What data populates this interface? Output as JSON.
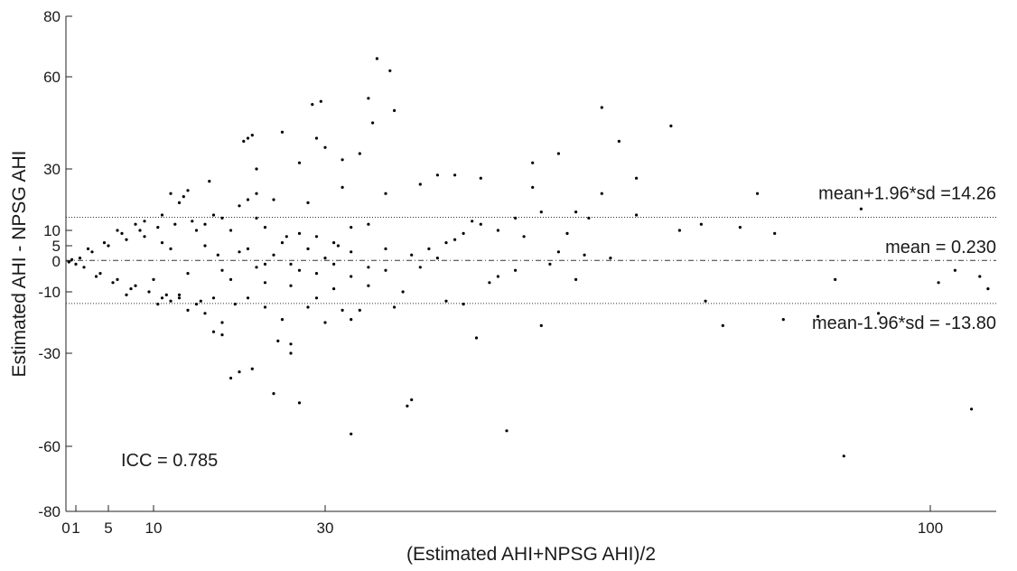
{
  "chart_data": {
    "type": "scatter",
    "title": "",
    "xlabel": "(Estimated AHI+NPSG AHI)/2",
    "ylabel": "Estimated AHI - NPSG AHI",
    "xlim": [
      0,
      108
    ],
    "ylim": [
      -80,
      80
    ],
    "x_ticks": [
      {
        "value": 0,
        "label": "0"
      },
      {
        "value": 1,
        "label": "1"
      },
      {
        "value": 5,
        "label": "5"
      },
      {
        "value": 10,
        "label": "10"
      },
      {
        "value": 30,
        "label": "30"
      },
      {
        "value": 100,
        "label": "100"
      }
    ],
    "y_ticks": [
      {
        "value": 80,
        "label": "80"
      },
      {
        "value": 60,
        "label": "60"
      },
      {
        "value": 30,
        "label": "30"
      },
      {
        "value": 10,
        "label": "10"
      },
      {
        "value": 5,
        "label": "5"
      },
      {
        "value": 0,
        "label": "0"
      },
      {
        "value": -10,
        "label": "-10"
      },
      {
        "value": -30,
        "label": "-30"
      },
      {
        "value": -60,
        "label": "-60"
      },
      {
        "value": -80,
        "label": "-80"
      }
    ],
    "reference_lines": [
      {
        "value": 14.26,
        "label": "mean+1.96*sd =14.26",
        "style": "dotted"
      },
      {
        "value": 0.23,
        "label": "mean = 0.230",
        "style": "dashdot"
      },
      {
        "value": -13.8,
        "label": "mean-1.96*sd = -13.80",
        "style": "dotted"
      }
    ],
    "annotation": "ICC = 0.785",
    "grid": false,
    "point_color": "#000000",
    "points": [
      [
        36,
        66
      ],
      [
        37.5,
        62
      ],
      [
        35,
        53
      ],
      [
        29.5,
        52
      ],
      [
        28.5,
        51
      ],
      [
        35.5,
        45
      ],
      [
        38,
        49
      ],
      [
        62,
        50
      ],
      [
        70,
        44
      ],
      [
        29,
        40
      ],
      [
        21.5,
        41
      ],
      [
        25,
        42
      ],
      [
        21,
        40
      ],
      [
        20.5,
        39
      ],
      [
        30,
        37
      ],
      [
        45,
        28
      ],
      [
        54,
        32
      ],
      [
        57,
        35
      ],
      [
        64,
        39
      ],
      [
        34,
        35
      ],
      [
        22,
        30
      ],
      [
        32,
        33
      ],
      [
        27,
        32
      ],
      [
        41,
        25
      ],
      [
        43,
        28
      ],
      [
        48,
        27
      ],
      [
        54,
        24
      ],
      [
        62,
        22
      ],
      [
        66,
        27
      ],
      [
        80,
        22
      ],
      [
        92,
        17
      ],
      [
        59,
        16
      ],
      [
        60.5,
        14
      ],
      [
        66,
        15
      ],
      [
        71,
        10
      ],
      [
        73.5,
        12
      ],
      [
        78,
        11
      ],
      [
        82,
        9
      ],
      [
        89,
        -6
      ],
      [
        101,
        -7
      ],
      [
        103,
        -3
      ],
      [
        107,
        -9
      ],
      [
        106,
        -5
      ],
      [
        47.5,
        -25
      ],
      [
        55,
        -21
      ],
      [
        74,
        -13
      ],
      [
        76,
        -21
      ],
      [
        83,
        -19
      ],
      [
        87,
        -18
      ],
      [
        94,
        -17
      ],
      [
        105,
        -48
      ],
      [
        90,
        -63
      ],
      [
        51,
        -55
      ],
      [
        33,
        -56
      ],
      [
        40,
        -45
      ],
      [
        39.5,
        -47
      ],
      [
        24,
        -43
      ],
      [
        27,
        -46
      ],
      [
        19,
        -38
      ],
      [
        21.5,
        -35
      ],
      [
        20,
        -36
      ],
      [
        24.5,
        -26
      ],
      [
        26,
        -27
      ],
      [
        26,
        -30
      ],
      [
        18,
        -24
      ],
      [
        17,
        -23
      ],
      [
        34,
        -16
      ],
      [
        32,
        -16
      ],
      [
        33,
        -19
      ],
      [
        38,
        -15
      ],
      [
        46,
        -14
      ],
      [
        30,
        -20
      ],
      [
        28,
        -15
      ],
      [
        44,
        -13
      ],
      [
        49,
        -7
      ],
      [
        52,
        -3
      ],
      [
        57,
        3
      ],
      [
        59,
        -6
      ],
      [
        31,
        6
      ],
      [
        33,
        3
      ],
      [
        29,
        8
      ],
      [
        31.5,
        5
      ],
      [
        25.5,
        8
      ],
      [
        27,
        -3
      ],
      [
        23,
        -7
      ],
      [
        23,
        11
      ],
      [
        22,
        14
      ],
      [
        24,
        20
      ],
      [
        28,
        19
      ],
      [
        35,
        12
      ],
      [
        32,
        24
      ],
      [
        37,
        22
      ],
      [
        15,
        10
      ],
      [
        16,
        12
      ],
      [
        17,
        15
      ],
      [
        18,
        14
      ],
      [
        19,
        10
      ],
      [
        20,
        18
      ],
      [
        21,
        20
      ],
      [
        22,
        22
      ],
      [
        13,
        19
      ],
      [
        14,
        23
      ],
      [
        12,
        22
      ],
      [
        13.5,
        21
      ],
      [
        16.5,
        26
      ],
      [
        19.5,
        -14
      ],
      [
        15,
        -14
      ],
      [
        14,
        -16
      ],
      [
        12,
        -13
      ],
      [
        11,
        -12
      ],
      [
        13,
        -11
      ],
      [
        17,
        -12
      ],
      [
        16,
        -17
      ],
      [
        18,
        -20
      ],
      [
        21,
        -12
      ],
      [
        23,
        -15
      ],
      [
        25,
        -19
      ],
      [
        26,
        -8
      ],
      [
        29,
        -12
      ],
      [
        31,
        -9
      ],
      [
        33,
        -5
      ],
      [
        35,
        -2
      ],
      [
        37,
        -3
      ],
      [
        40,
        2
      ],
      [
        42,
        4
      ],
      [
        44,
        6
      ],
      [
        46,
        9
      ],
      [
        48,
        12
      ],
      [
        50,
        10
      ],
      [
        53,
        8
      ],
      [
        56,
        -1
      ],
      [
        60,
        2
      ],
      [
        63,
        1
      ],
      [
        30,
        1
      ],
      [
        28,
        4
      ],
      [
        26,
        -1
      ],
      [
        24,
        2
      ],
      [
        22,
        -2
      ],
      [
        20,
        3
      ],
      [
        18,
        -3
      ],
      [
        16,
        5
      ],
      [
        14,
        -4
      ],
      [
        12,
        4
      ],
      [
        11,
        6
      ],
      [
        10,
        -6
      ],
      [
        9,
        8
      ],
      [
        8,
        -8
      ],
      [
        7,
        7
      ],
      [
        6,
        -6
      ],
      [
        5,
        5
      ],
      [
        4,
        -4
      ],
      [
        3,
        3
      ],
      [
        2,
        -2
      ],
      [
        1.5,
        1
      ],
      [
        1,
        -1
      ],
      [
        0.6,
        0.5
      ],
      [
        0.3,
        -0.3
      ],
      [
        6.5,
        9
      ],
      [
        7.5,
        -9
      ],
      [
        8.5,
        10
      ],
      [
        9.5,
        -10
      ],
      [
        10.5,
        11
      ],
      [
        11.5,
        -11
      ],
      [
        12.5,
        12
      ],
      [
        13,
        -12
      ],
      [
        14.5,
        13
      ],
      [
        15.5,
        -13
      ],
      [
        10.5,
        -14
      ],
      [
        11,
        15
      ],
      [
        9,
        13
      ],
      [
        8,
        12
      ],
      [
        7,
        -11
      ],
      [
        6,
        10
      ],
      [
        5.5,
        -7
      ],
      [
        4.5,
        6
      ],
      [
        3.5,
        -5
      ],
      [
        2.5,
        4
      ],
      [
        17.5,
        2
      ],
      [
        19,
        -6
      ],
      [
        21,
        4
      ],
      [
        23,
        -1
      ],
      [
        25,
        6
      ],
      [
        27,
        9
      ],
      [
        29,
        -4
      ],
      [
        31,
        -1
      ],
      [
        33,
        11
      ],
      [
        35,
        -8
      ],
      [
        37,
        4
      ],
      [
        39,
        -10
      ],
      [
        41,
        -2
      ],
      [
        43,
        1
      ],
      [
        45,
        7
      ],
      [
        47,
        13
      ],
      [
        50,
        -5
      ],
      [
        52,
        14
      ],
      [
        55,
        16
      ],
      [
        58,
        9
      ]
    ]
  }
}
